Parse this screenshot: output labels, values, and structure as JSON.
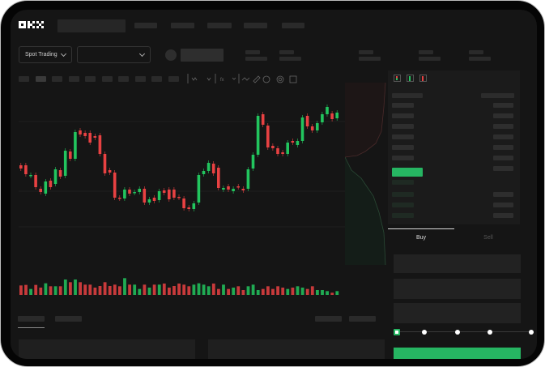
{
  "brand": {
    "logo_text": "OKX"
  },
  "market_selector": {
    "label": "Spot Trading",
    "pair_value": ""
  },
  "trade_form": {
    "tabs": [
      {
        "label": "Buy",
        "active": true
      },
      {
        "label": "Sell",
        "active": false
      }
    ],
    "slider_percent": 0
  },
  "colors": {
    "up": "#22c55e",
    "down": "#e84142",
    "accent": "#26b562",
    "background": "#151515"
  },
  "chart_data": {
    "type": "candlestick",
    "candles": [
      [
        97,
        93
      ],
      [
        97,
        86
      ],
      [
        84,
        85
      ],
      [
        85,
        70
      ],
      [
        68,
        64
      ],
      [
        62,
        77
      ],
      [
        78,
        70
      ],
      [
        74,
        92
      ],
      [
        91,
        83
      ],
      [
        84,
        115
      ],
      [
        114,
        105
      ],
      [
        105,
        138
      ],
      [
        140,
        135
      ],
      [
        137,
        133
      ],
      [
        137,
        125
      ],
      [
        133,
        131
      ],
      [
        134,
        111
      ],
      [
        111,
        87
      ],
      [
        91,
        88
      ],
      [
        88,
        57
      ],
      [
        57,
        56
      ],
      [
        56,
        67
      ],
      [
        67,
        62
      ],
      [
        63,
        64
      ],
      [
        64,
        68
      ],
      [
        68,
        51
      ],
      [
        51,
        55
      ],
      [
        57,
        53
      ],
      [
        54,
        65
      ],
      [
        66,
        63
      ],
      [
        67,
        55
      ],
      [
        67,
        57
      ],
      [
        58,
        57
      ],
      [
        56,
        44
      ],
      [
        45,
        43
      ],
      [
        43,
        50
      ],
      [
        51,
        85
      ],
      [
        86,
        90
      ],
      [
        90,
        100
      ],
      [
        99,
        87
      ],
      [
        94,
        69
      ],
      [
        67,
        69
      ],
      [
        71,
        67
      ],
      [
        65,
        68
      ],
      [
        71,
        70
      ],
      [
        68,
        66
      ],
      [
        68,
        92
      ],
      [
        93,
        110
      ],
      [
        110,
        158
      ],
      [
        160,
        147
      ],
      [
        146,
        119
      ],
      [
        121,
        118
      ],
      [
        118,
        111
      ],
      [
        113,
        111
      ],
      [
        111,
        125
      ],
      [
        127,
        125
      ],
      [
        122,
        127
      ],
      [
        127,
        156
      ],
      [
        158,
        145
      ],
      [
        145,
        140
      ],
      [
        140,
        149
      ],
      [
        150,
        160
      ],
      [
        160,
        169
      ],
      [
        161,
        154
      ],
      [
        155,
        162
      ]
    ],
    "volume": [
      35,
      37,
      22,
      37,
      27,
      43,
      32,
      32,
      32,
      57,
      47,
      57,
      47,
      38,
      38,
      27,
      33,
      47,
      33,
      38,
      32,
      62,
      38,
      38,
      22,
      38,
      27,
      38,
      38,
      42,
      27,
      33,
      42,
      38,
      32,
      38,
      43,
      38,
      32,
      42,
      22,
      38,
      22,
      27,
      32,
      18,
      32,
      38,
      18,
      22,
      32,
      22,
      32,
      27,
      22,
      27,
      32,
      27,
      22,
      32,
      18,
      18,
      14,
      8,
      14
    ]
  }
}
